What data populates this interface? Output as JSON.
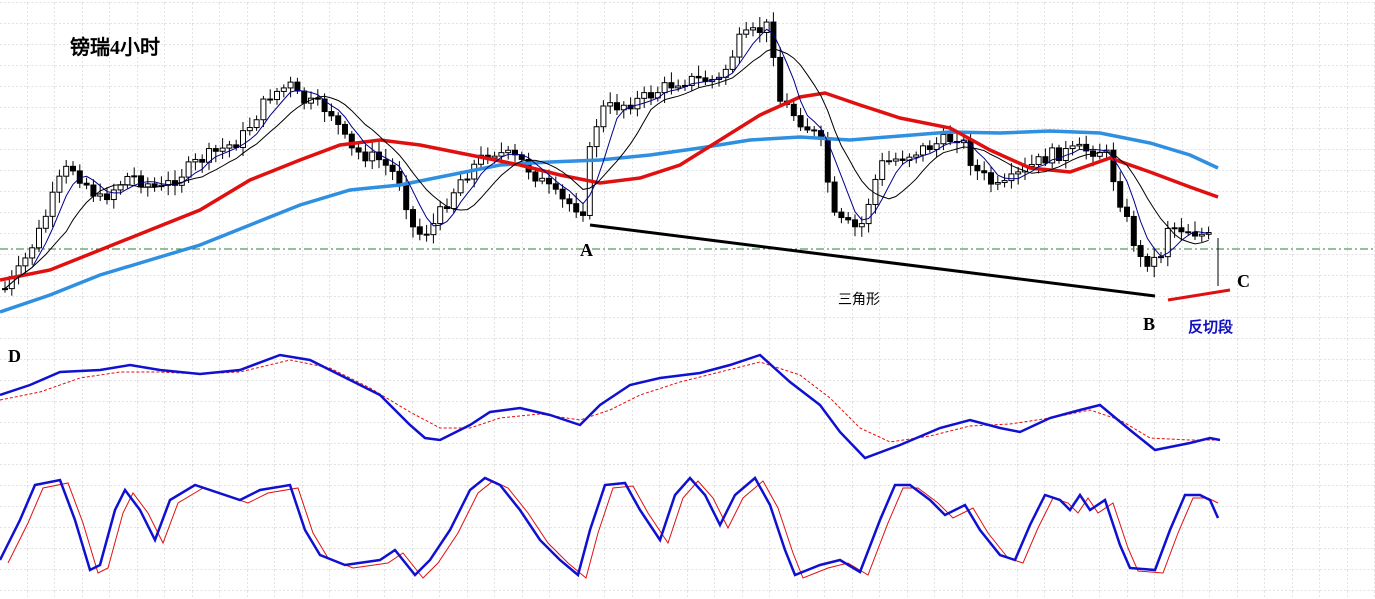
{
  "title": "镑瑞4小时",
  "annotations": {
    "a": "A",
    "b": "B",
    "c": "C",
    "d": "D",
    "triangle": "三角形",
    "counter_section": "反切段"
  }
}
